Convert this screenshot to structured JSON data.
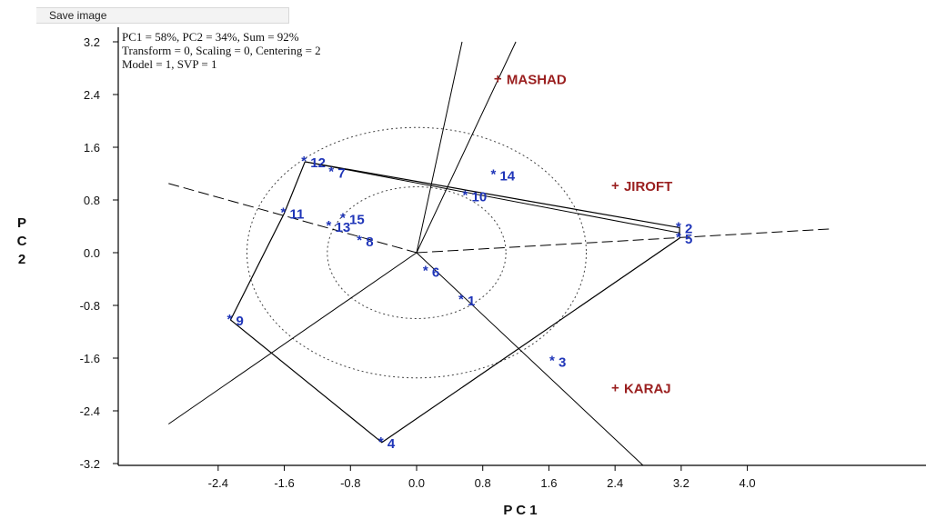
{
  "toolbar": {
    "save_label": "Save image"
  },
  "colors": {
    "genotype": "#1f35b8",
    "environment": "#9a1f1f",
    "lines": "#000000"
  },
  "chart_data": {
    "type": "scatter",
    "info_lines": [
      "PC1 = 58%, PC2 = 34%, Sum = 92%",
      "Transform = 0, Scaling = 0, Centering = 2",
      "Model = 1, SVP = 1"
    ],
    "xlabel": "P C 1",
    "ylabel": "P C 2",
    "xlim": [
      -2.8,
      4.8
    ],
    "ylim": [
      -3.2,
      3.2
    ],
    "xticks": [
      "-2.4",
      "-1.6",
      "-0.8",
      "0.0",
      "0.8",
      "1.6",
      "2.4",
      "3.2",
      "4.0"
    ],
    "yticks": [
      "3.2",
      "2.4",
      "1.6",
      "0.8",
      "0.0",
      "-0.8",
      "-1.6",
      "-2.4",
      "-3.2"
    ],
    "genotypes": [
      {
        "label": "1",
        "x": 0.55,
        "y": -0.72
      },
      {
        "label": "2",
        "x": 3.18,
        "y": 0.38
      },
      {
        "label": "3",
        "x": 1.65,
        "y": -1.65
      },
      {
        "label": "4",
        "x": -0.42,
        "y": -2.88
      },
      {
        "label": "5",
        "x": 3.18,
        "y": 0.22
      },
      {
        "label": "6",
        "x": 0.12,
        "y": -0.28
      },
      {
        "label": "7",
        "x": -1.02,
        "y": 1.22
      },
      {
        "label": "8",
        "x": -0.68,
        "y": 0.18
      },
      {
        "label": "9",
        "x": -2.25,
        "y": -1.02
      },
      {
        "label": "10",
        "x": 0.6,
        "y": 0.86
      },
      {
        "label": "11",
        "x": -1.6,
        "y": 0.6
      },
      {
        "label": "12",
        "x": -1.35,
        "y": 1.38
      },
      {
        "label": "13",
        "x": -1.05,
        "y": 0.4
      },
      {
        "label": "14",
        "x": 0.94,
        "y": 1.18
      },
      {
        "label": "15",
        "x": -0.88,
        "y": 0.52
      }
    ],
    "environments": [
      {
        "label": "MASHAD",
        "x": 1.0,
        "y": 2.64
      },
      {
        "label": "JIROFT",
        "x": 2.42,
        "y": 1.02
      },
      {
        "label": "KARAJ",
        "x": 2.42,
        "y": -2.05
      }
    ],
    "polygon": [
      "12",
      "2",
      "5",
      "4",
      "9",
      "11",
      "12"
    ],
    "circles": [
      1.0,
      1.9
    ]
  }
}
